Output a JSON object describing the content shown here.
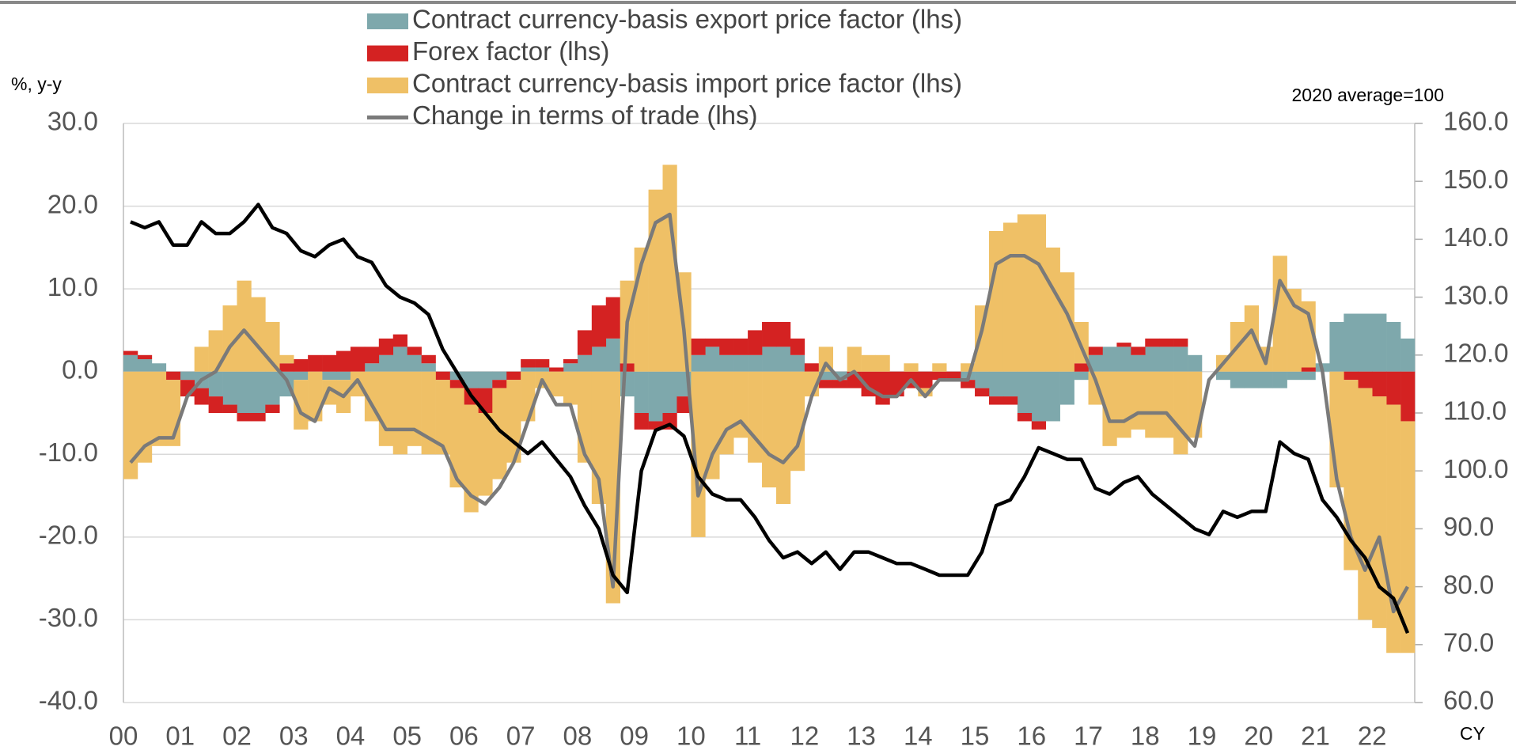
{
  "chart_data": {
    "type": "bar",
    "stacked": true,
    "y_label": "%, y-y",
    "y2_label": "2020 average=100",
    "x_label": "CY",
    "categories": [
      "00",
      null,
      null,
      null,
      "01",
      null,
      null,
      null,
      "02",
      null,
      null,
      null,
      "03",
      null,
      null,
      null,
      "04",
      null,
      null,
      null,
      "05",
      null,
      null,
      null,
      "06",
      null,
      null,
      null,
      "07",
      null,
      null,
      null,
      "08",
      null,
      null,
      null,
      "09",
      null,
      null,
      null,
      "10",
      null,
      null,
      null,
      "11",
      null,
      null,
      null,
      "12",
      null,
      null,
      null,
      "13",
      null,
      null,
      null,
      "14",
      null,
      null,
      null,
      "15",
      null,
      null,
      null,
      "16",
      null,
      null,
      null,
      "17",
      null,
      null,
      null,
      "18",
      null,
      null,
      null,
      "19",
      null,
      null,
      null,
      "20",
      null,
      null,
      null,
      "21",
      null,
      null,
      null,
      "22",
      null,
      null
    ],
    "ylim": [
      -40,
      30
    ],
    "yticks": [
      {
        "value": -40,
        "label": "-40.0"
      },
      {
        "value": -30,
        "label": "-30.0"
      },
      {
        "value": -20,
        "label": "-20.0"
      },
      {
        "value": -10,
        "label": "-10.0"
      },
      {
        "value": 0,
        "label": "0.0"
      },
      {
        "value": 10,
        "label": "10.0"
      },
      {
        "value": 20,
        "label": "20.0"
      },
      {
        "value": 30,
        "label": "30.0"
      }
    ],
    "y2lim": [
      60,
      160
    ],
    "y2ticks": [
      {
        "value": 60,
        "label": "60.0"
      },
      {
        "value": 70,
        "label": "70.0"
      },
      {
        "value": 80,
        "label": "80.0"
      },
      {
        "value": 90,
        "label": "90.0"
      },
      {
        "value": 100,
        "label": "100.0"
      },
      {
        "value": 110,
        "label": "110.0"
      },
      {
        "value": 120,
        "label": "120.0"
      },
      {
        "value": 130,
        "label": "130.0"
      },
      {
        "value": 140,
        "label": "140.0"
      },
      {
        "value": 150,
        "label": "150.0"
      },
      {
        "value": 160,
        "label": "160.0"
      }
    ],
    "grid": true,
    "series": [
      {
        "name": "Contract currency-basis export price factor (lhs)",
        "type": "bar",
        "color": "#7ea8ac",
        "values": [
          2,
          1.5,
          1,
          0,
          -1,
          -2,
          -3,
          -4,
          -5,
          -5,
          -4,
          -3,
          -1,
          0,
          -1,
          -1,
          0,
          1,
          2,
          3,
          2,
          1,
          0,
          -1,
          -2,
          -2,
          -1,
          0,
          0.5,
          0.5,
          0,
          1,
          2,
          3,
          4,
          -3,
          -5,
          -6,
          -5,
          -3,
          2,
          3,
          2,
          2,
          2,
          3,
          3,
          2,
          0,
          -1,
          -1,
          0,
          0,
          0,
          0,
          0,
          0,
          0,
          0,
          -1,
          -2,
          -3,
          -3,
          -5,
          -6,
          -6,
          -4,
          -1,
          2,
          3,
          3,
          2,
          3,
          3,
          3,
          2,
          0,
          -1,
          -2,
          -2,
          -2,
          -2,
          -1,
          -1,
          1,
          6,
          7,
          7,
          7,
          6,
          4
        ]
      },
      {
        "name": "Forex factor (lhs)",
        "type": "bar",
        "color": "#d42222",
        "values": [
          0.5,
          0.5,
          0,
          -1,
          -2,
          -2,
          -2,
          -1,
          -1,
          -1,
          -1,
          1,
          1.5,
          2,
          2,
          2.5,
          3,
          2,
          2,
          1.5,
          1,
          1,
          -1,
          -1,
          -2,
          -3,
          -1,
          -1,
          1,
          1,
          0.5,
          0.5,
          3,
          5,
          5,
          1,
          -2,
          -1,
          -2,
          -2,
          2,
          1,
          2,
          2,
          3,
          3,
          3,
          2,
          1,
          -1,
          -1,
          -2,
          -3,
          -4,
          -3,
          -2,
          -2,
          -1,
          -1,
          -1,
          -1,
          -1,
          -1,
          -1,
          -1,
          0,
          0,
          1,
          1,
          0,
          0.5,
          1,
          1,
          1,
          1,
          0,
          0,
          0,
          0,
          0,
          0,
          0,
          0,
          0.5,
          0,
          0,
          -1,
          -2,
          -3,
          -4,
          -6
        ]
      },
      {
        "name": "Contract currency-basis import price factor (lhs)",
        "type": "bar",
        "color": "#efc066",
        "values": [
          -13,
          -11,
          -9,
          -8,
          0,
          3,
          5,
          8,
          11,
          9,
          6,
          1,
          -6,
          -6,
          -3,
          -4,
          -3,
          -6,
          -9,
          -10,
          -9,
          -10,
          -9,
          -12,
          -13,
          -10,
          -11,
          -10,
          -6,
          -2,
          -3,
          -4,
          -11,
          -16,
          -28,
          10,
          15,
          22,
          25,
          12,
          -20,
          -13,
          -10,
          -8,
          -11,
          -14,
          -16,
          -12,
          -3,
          3,
          0,
          3,
          2,
          2,
          0,
          1,
          -1,
          1,
          0,
          1,
          8,
          17,
          18,
          19,
          19,
          15,
          12,
          5,
          -4,
          -9,
          -8,
          -7,
          -8,
          -8,
          -10,
          -8,
          0,
          2,
          6,
          8,
          3,
          14,
          10,
          8,
          0,
          -14,
          -23,
          -28,
          -28,
          -30,
          -28
        ]
      },
      {
        "name": "Change in terms of trade (lhs)",
        "type": "line",
        "color": "#7a7a7a",
        "values": [
          -11,
          -9,
          -8,
          -8,
          -3,
          -1,
          0,
          3,
          5,
          3,
          1,
          -1,
          -5,
          -6,
          -2,
          -3,
          -1,
          -4,
          -7,
          -7,
          -7,
          -8,
          -9,
          -13,
          -15,
          -16,
          -14,
          -11,
          -6,
          -1,
          -4,
          -4,
          -10,
          -13,
          -26,
          6,
          13,
          18,
          19,
          5,
          -15,
          -10,
          -7,
          -6,
          -8,
          -10,
          -11,
          -9,
          -3,
          1,
          -1,
          0,
          -2,
          -3,
          -3,
          -1,
          -3,
          -1,
          -1,
          -1,
          5,
          13,
          14,
          14,
          13,
          10,
          7,
          3,
          -1,
          -6,
          -6,
          -5,
          -5,
          -5,
          -7,
          -9,
          -1,
          1,
          3,
          5,
          1,
          11,
          8,
          7,
          0,
          -13,
          -20,
          -24,
          -20,
          -29,
          -26
        ]
      },
      {
        "type": "line",
        "axis": "y2",
        "color": "#000000",
        "values": [
          143,
          142,
          143,
          139,
          139,
          143,
          141,
          141,
          143,
          146,
          142,
          141,
          138,
          137,
          139,
          140,
          137,
          136,
          132,
          130,
          129,
          127,
          121,
          117,
          113,
          110,
          107,
          105,
          103,
          105,
          102,
          99,
          94,
          90,
          82,
          79,
          100,
          107,
          108,
          106,
          99,
          96,
          95,
          95,
          92,
          88,
          85,
          86,
          84,
          86,
          83,
          86,
          86,
          85,
          84,
          84,
          83,
          82,
          82,
          82,
          86,
          94,
          95,
          99,
          104,
          103,
          102,
          102,
          97,
          96,
          98,
          99,
          96,
          94,
          92,
          90,
          89,
          93,
          92,
          93,
          93,
          105,
          103,
          102,
          95,
          92,
          88,
          85,
          80,
          78,
          72
        ]
      }
    ]
  }
}
